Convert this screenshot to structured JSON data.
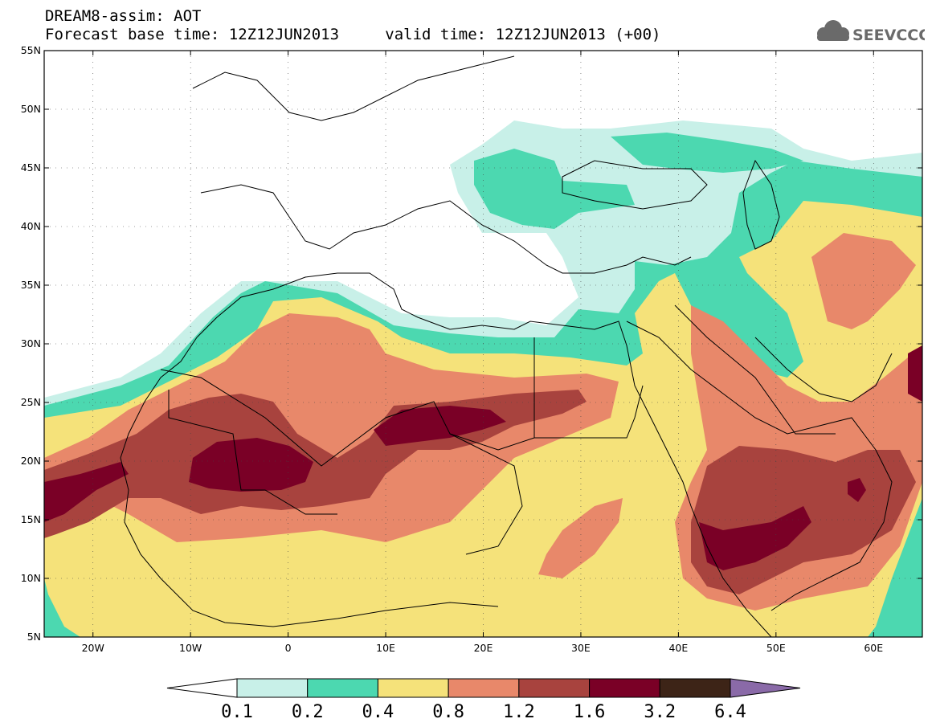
{
  "header": {
    "title_line1": "DREAM8-assim: AOT",
    "base_label": "Forecast base time:",
    "base_time": "12Z12JUN2013",
    "valid_label": "valid time:",
    "valid_time": "12Z12JUN2013 (+00)"
  },
  "logo": {
    "text": "SEEVCCC",
    "icon": "cloud-icon"
  },
  "map": {
    "lon_range": [
      -25,
      65
    ],
    "lat_range": [
      5,
      55
    ],
    "lat_ticks": [
      "5N",
      "10N",
      "15N",
      "20N",
      "25N",
      "30N",
      "35N",
      "40N",
      "45N",
      "50N",
      "55N"
    ],
    "lon_ticks": [
      "20W",
      "10W",
      "0",
      "10E",
      "20E",
      "30E",
      "40E",
      "50E",
      "60E"
    ],
    "variable": "Aerosol optical thickness"
  },
  "colorbar": {
    "levels": [
      "0.1",
      "0.2",
      "0.4",
      "0.8",
      "1.2",
      "1.6",
      "3.2",
      "6.4"
    ],
    "colors": [
      "#ffffff",
      "#c8f0e8",
      "#4cd8b0",
      "#f5e27a",
      "#e8886a",
      "#a8433e",
      "#7a0026",
      "#3d2417",
      "#8a6aa8"
    ]
  }
}
